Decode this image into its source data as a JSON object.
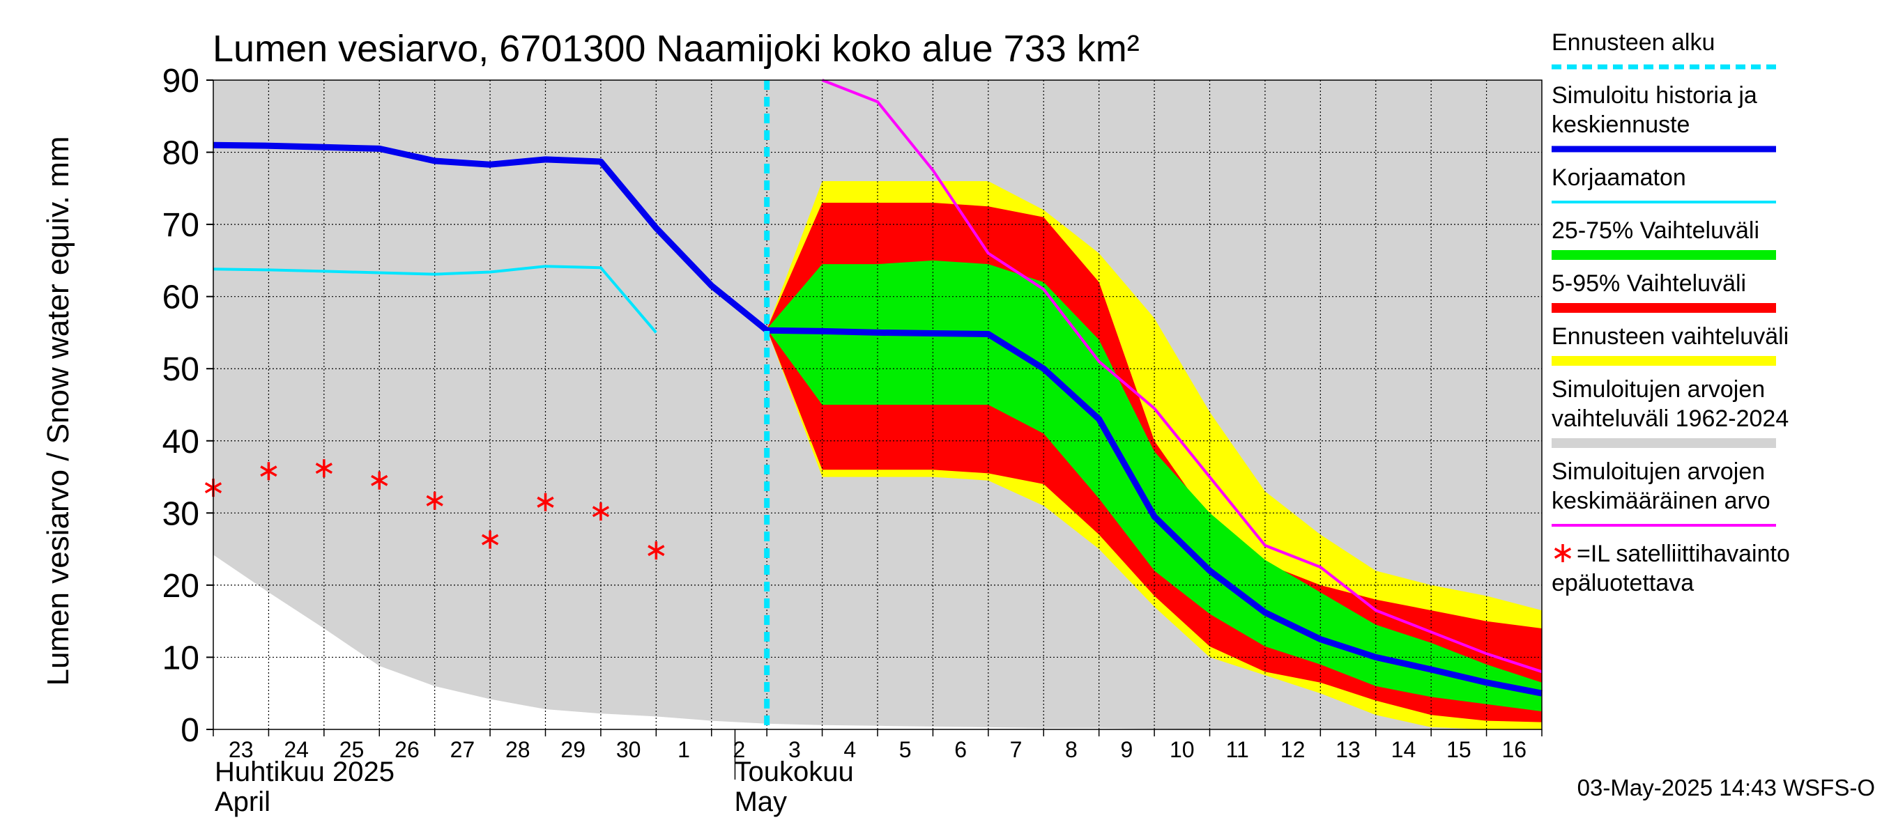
{
  "chart_data": {
    "type": "area",
    "title": "Lumen vesiarvo, 6701300 Naamijoki koko alue 733 km²",
    "ylabel": "Lumen vesiarvo / Snow water equiv.    mm",
    "ylim": [
      0,
      90
    ],
    "yticks": [
      0,
      10,
      20,
      30,
      40,
      50,
      60,
      70,
      80,
      90
    ],
    "grid": true,
    "x_days": [
      "23",
      "24",
      "25",
      "26",
      "27",
      "28",
      "29",
      "30",
      "1",
      "2",
      "3",
      "4",
      "5",
      "6",
      "7",
      "8",
      "9",
      "10",
      "11",
      "12",
      "13",
      "14",
      "15",
      "16"
    ],
    "x_day_index_range": [
      0,
      24
    ],
    "month_labels": [
      {
        "name": "Huhtikuu  2025",
        "name_en": "April",
        "start_index": 0
      },
      {
        "name": "Toukokuu",
        "name_en": "May",
        "start_index": 9.5
      }
    ],
    "forecast_start_index": 10.0,
    "series": {
      "historical_range": {
        "name": "Simuloitujen arvojen vaihteluväli 1962-2024",
        "color": "#d3d3d3",
        "upper": [
          [
            0,
            90
          ],
          [
            24,
            90
          ]
        ],
        "lower": [
          [
            0,
            24.2
          ],
          [
            1,
            19
          ],
          [
            2,
            14
          ],
          [
            3,
            8.8
          ],
          [
            4,
            6
          ],
          [
            5,
            4.2
          ],
          [
            6,
            2.8
          ],
          [
            7,
            2.2
          ],
          [
            8,
            1.8
          ],
          [
            9,
            1.2
          ],
          [
            10,
            0.8
          ],
          [
            11,
            0.6
          ],
          [
            12,
            0.5
          ],
          [
            13,
            0.4
          ],
          [
            14,
            0.3
          ],
          [
            15,
            0.2
          ],
          [
            16,
            0.2
          ],
          [
            17,
            0.1
          ],
          [
            18,
            0
          ],
          [
            24,
            0
          ]
        ]
      },
      "forecast_range": {
        "name": "Ennusteen vaihteluväli",
        "color": "#ffff00",
        "upper": [
          [
            10,
            55.5
          ],
          [
            11,
            76
          ],
          [
            12,
            76
          ],
          [
            13,
            76
          ],
          [
            14,
            76
          ],
          [
            15,
            72
          ],
          [
            16,
            66
          ],
          [
            17,
            57
          ],
          [
            18,
            44
          ],
          [
            19,
            33
          ],
          [
            20,
            27
          ],
          [
            21,
            22
          ],
          [
            22,
            20
          ],
          [
            23,
            18.5
          ],
          [
            24,
            16.5
          ]
        ],
        "lower": [
          [
            10,
            55.5
          ],
          [
            11,
            35
          ],
          [
            12,
            35
          ],
          [
            13,
            35
          ],
          [
            14,
            34.5
          ],
          [
            15,
            31
          ],
          [
            16,
            25
          ],
          [
            17,
            17
          ],
          [
            18,
            10
          ],
          [
            19,
            7.5
          ],
          [
            20,
            5
          ],
          [
            21,
            2
          ],
          [
            22,
            0.3
          ],
          [
            23,
            0
          ],
          [
            24,
            0
          ]
        ]
      },
      "p5_95": {
        "name": "5-95% Vaihteluväli",
        "color": "#ff0000",
        "upper": [
          [
            10,
            55.5
          ],
          [
            11,
            73
          ],
          [
            12,
            73
          ],
          [
            13,
            73
          ],
          [
            14,
            72.5
          ],
          [
            15,
            71
          ],
          [
            16,
            62
          ],
          [
            17,
            40
          ],
          [
            18,
            29
          ],
          [
            19,
            23
          ],
          [
            20,
            20
          ],
          [
            21,
            18
          ],
          [
            22,
            16.5
          ],
          [
            23,
            15
          ],
          [
            24,
            14
          ]
        ],
        "lower": [
          [
            10,
            55.5
          ],
          [
            11,
            36
          ],
          [
            12,
            36
          ],
          [
            13,
            36
          ],
          [
            14,
            35.5
          ],
          [
            15,
            34
          ],
          [
            16,
            27
          ],
          [
            17,
            18.5
          ],
          [
            18,
            11.5
          ],
          [
            19,
            8
          ],
          [
            20,
            6.5
          ],
          [
            21,
            4
          ],
          [
            22,
            2
          ],
          [
            23,
            1.2
          ],
          [
            24,
            1
          ]
        ]
      },
      "p25_75": {
        "name": "25-75% Vaihteluväli",
        "color": "#00ee00",
        "upper": [
          [
            10,
            55.5
          ],
          [
            11,
            64.5
          ],
          [
            12,
            64.5
          ],
          [
            13,
            65
          ],
          [
            14,
            64.5
          ],
          [
            15,
            62
          ],
          [
            16,
            54
          ],
          [
            17,
            38.5
          ],
          [
            18,
            30
          ],
          [
            19,
            23.5
          ],
          [
            20,
            19
          ],
          [
            21,
            14.5
          ],
          [
            22,
            12
          ],
          [
            23,
            9
          ],
          [
            24,
            6.5
          ]
        ],
        "lower": [
          [
            10,
            55.5
          ],
          [
            11,
            45
          ],
          [
            12,
            45
          ],
          [
            13,
            45
          ],
          [
            14,
            45
          ],
          [
            15,
            41
          ],
          [
            16,
            32
          ],
          [
            17,
            22
          ],
          [
            18,
            16
          ],
          [
            19,
            11.5
          ],
          [
            20,
            9
          ],
          [
            21,
            6
          ],
          [
            22,
            4.5
          ],
          [
            23,
            3.5
          ],
          [
            24,
            2.5
          ]
        ]
      },
      "uncorrected": {
        "name": "Korjaamaton",
        "color": "#00e5ff",
        "points": [
          [
            0,
            63.8
          ],
          [
            1,
            63.7
          ],
          [
            2,
            63.5
          ],
          [
            3,
            63.3
          ],
          [
            4,
            63.1
          ],
          [
            5,
            63.4
          ],
          [
            6,
            64.2
          ],
          [
            7,
            64.0
          ],
          [
            8,
            55.0
          ]
        ]
      },
      "simulated_mean_forecast": {
        "name": "Simuloitu historia ja keskiennuste",
        "color": "#0000ee",
        "points": [
          [
            0,
            81
          ],
          [
            1,
            80.9
          ],
          [
            2,
            80.7
          ],
          [
            3,
            80.5
          ],
          [
            4,
            78.8
          ],
          [
            5,
            78.3
          ],
          [
            6,
            79
          ],
          [
            7,
            78.7
          ],
          [
            8,
            69.5
          ],
          [
            9,
            61.5
          ],
          [
            10,
            55.3
          ],
          [
            11,
            55.2
          ],
          [
            12,
            55
          ],
          [
            13,
            54.9
          ],
          [
            14,
            54.8
          ],
          [
            15,
            50
          ],
          [
            16,
            43
          ],
          [
            17,
            29.5
          ],
          [
            18,
            22
          ],
          [
            19,
            16.2
          ],
          [
            20,
            12.5
          ],
          [
            21,
            10
          ],
          [
            22,
            8.3
          ],
          [
            23,
            6.5
          ],
          [
            24,
            5
          ]
        ]
      },
      "climate_mean": {
        "name": "Simuloitujen arvojen keskimääräinen arvo",
        "color": "#ff00ff",
        "points": [
          [
            11,
            90
          ],
          [
            12,
            87
          ],
          [
            13,
            77.5
          ],
          [
            14,
            66
          ],
          [
            15,
            61
          ],
          [
            16,
            51
          ],
          [
            17,
            44.5
          ],
          [
            18,
            35
          ],
          [
            19,
            25.5
          ],
          [
            20,
            22.5
          ],
          [
            21,
            16.5
          ],
          [
            22,
            13.5
          ],
          [
            23,
            10.5
          ],
          [
            24,
            8
          ]
        ]
      },
      "satellite_obs": {
        "name": "=IL satelliittihavainto epäluotettava",
        "color": "#ff0000",
        "points": [
          [
            0,
            33.5
          ],
          [
            1,
            35.8
          ],
          [
            2,
            36.2
          ],
          [
            3,
            34.5
          ],
          [
            4,
            31.7
          ],
          [
            5,
            26.3
          ],
          [
            6,
            31.5
          ],
          [
            7,
            30.2
          ],
          [
            8,
            24.8
          ]
        ]
      }
    },
    "legend": [
      {
        "label": "Ennusteen alku",
        "color": "#00e5ff",
        "style": "dashed"
      },
      {
        "label": "Simuloitu historia ja keskiennuste",
        "lines": [
          "Simuloitu historia ja",
          "keskiennuste"
        ],
        "color": "#0000ee",
        "style": "line"
      },
      {
        "label": "Korjaamaton",
        "color": "#00e5ff",
        "style": "thin"
      },
      {
        "label": "25-75% Vaihteluväli",
        "color": "#00ee00",
        "style": "band"
      },
      {
        "label": "5-95% Vaihteluväli",
        "color": "#ff0000",
        "style": "band"
      },
      {
        "label": "Ennusteen vaihteluväli",
        "color": "#ffff00",
        "style": "band"
      },
      {
        "label": "Simuloitujen arvojen vaihteluväli 1962-2024",
        "lines": [
          "Simuloitujen arvojen",
          "vaihteluväli 1962-2024"
        ],
        "color": "#d3d3d3",
        "style": "band"
      },
      {
        "label": "Simuloitujen arvojen keskimääräinen arvo",
        "lines": [
          "Simuloitujen arvojen",
          "keskimääräinen arvo"
        ],
        "color": "#ff00ff",
        "style": "thin"
      },
      {
        "label": "=IL satelliittihavainto epäluotettava",
        "lines": [
          "=IL satelliittihavainto",
          "epäluotettava"
        ],
        "color": "#ff0000",
        "style": "star"
      }
    ],
    "timestamp": "03-May-2025 14:43 WSFS-O"
  }
}
